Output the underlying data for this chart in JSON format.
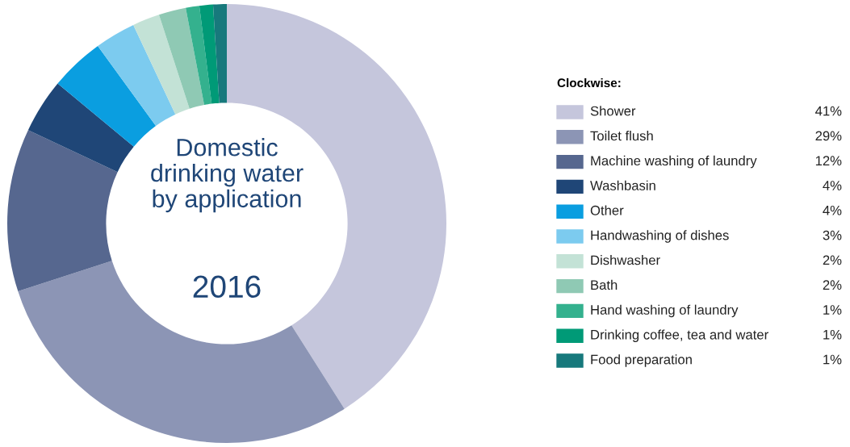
{
  "chart_data": {
    "type": "donut",
    "title": "Domestic\ndrinking water\nby application",
    "subtitle": "2016",
    "legend_title": "Clockwise:",
    "legend": "right",
    "categories": [
      "Shower",
      "Toilet flush",
      "Machine washing of laundry",
      "Washbasin",
      "Other",
      "Handwashing of dishes",
      "Dishwasher",
      "Bath",
      "Hand washing of laundry",
      "Drinking coffee, tea and water",
      "Food preparation"
    ],
    "values": [
      41,
      29,
      12,
      4,
      4,
      3,
      2,
      2,
      1,
      1,
      1
    ],
    "value_labels": [
      "41%",
      "29%",
      "12%",
      "4%",
      "4%",
      "3%",
      "2%",
      "2%",
      "1%",
      "1%",
      "1%"
    ],
    "colors": [
      "#c5c6dc",
      "#8c95b5",
      "#56678f",
      "#1f4677",
      "#0a9ee0",
      "#7ccbef",
      "#c3e2d6",
      "#8fc9b4",
      "#34b18e",
      "#009a77",
      "#17797c"
    ]
  }
}
